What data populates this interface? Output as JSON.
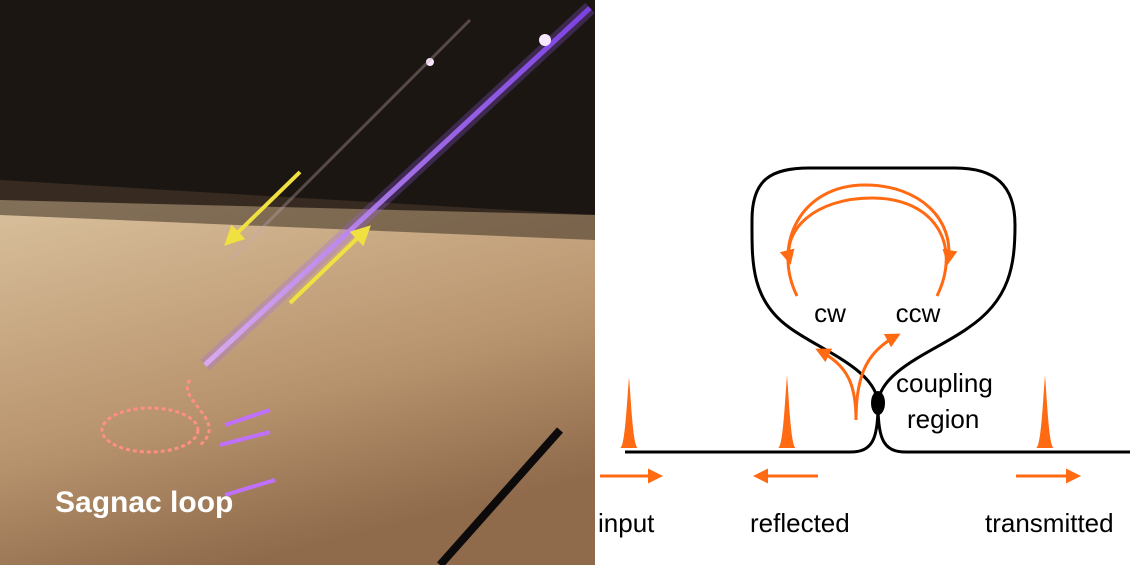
{
  "photo": {
    "label": "Sagnac loop"
  },
  "diagram": {
    "loop_labels": [
      "cw",
      "ccw"
    ],
    "coupling_label": [
      "coupling",
      "region"
    ],
    "port_labels": [
      "input",
      "reflected",
      "transmitted"
    ]
  }
}
